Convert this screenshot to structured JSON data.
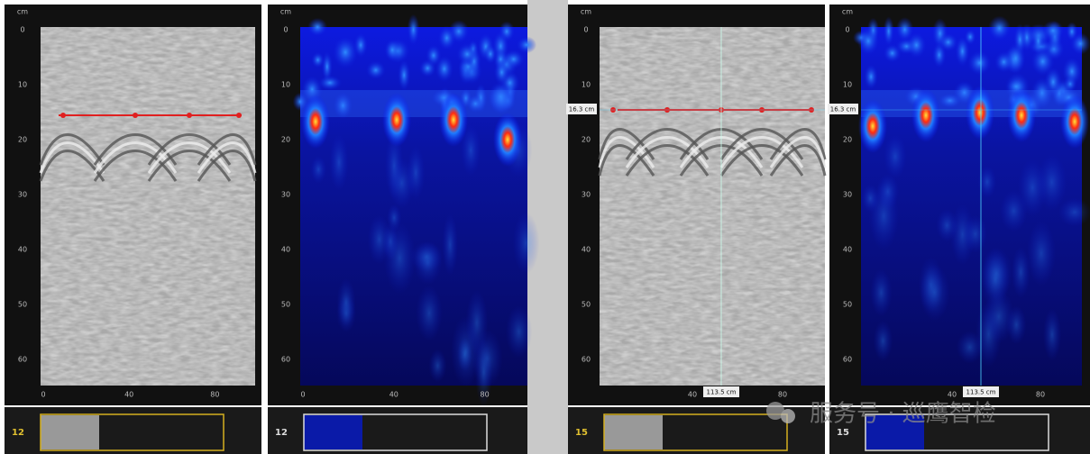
{
  "panels": [
    {
      "unit": "cm",
      "y_ticks": [
        "0",
        "10",
        "20",
        "30",
        "40",
        "50",
        "60"
      ],
      "x_ticks": [
        "0",
        "40",
        "80"
      ],
      "thumbnail_label": "12"
    },
    {
      "unit": "cm",
      "y_ticks": [
        "0",
        "10",
        "20",
        "30",
        "40",
        "50",
        "60"
      ],
      "x_ticks": [
        "0",
        "40",
        "80"
      ],
      "thumbnail_label": "12"
    },
    {
      "unit": "cm",
      "y_ticks": [
        "0",
        "10",
        "20",
        "30",
        "40",
        "50",
        "60"
      ],
      "x_ticks": [
        "40",
        "80"
      ],
      "thumbnail_label": "15",
      "depth_marker": "16.3 cm",
      "position_marker": "113.5 cm"
    },
    {
      "unit": "cm",
      "y_ticks": [
        "0",
        "10",
        "20",
        "30",
        "40",
        "50",
        "60"
      ],
      "x_ticks": [
        "40",
        "80"
      ],
      "thumbnail_label": "15",
      "depth_marker": "16.3 cm",
      "position_marker": "113.5 cm"
    }
  ],
  "watermark": "服务号 · 巡鹰智检"
}
